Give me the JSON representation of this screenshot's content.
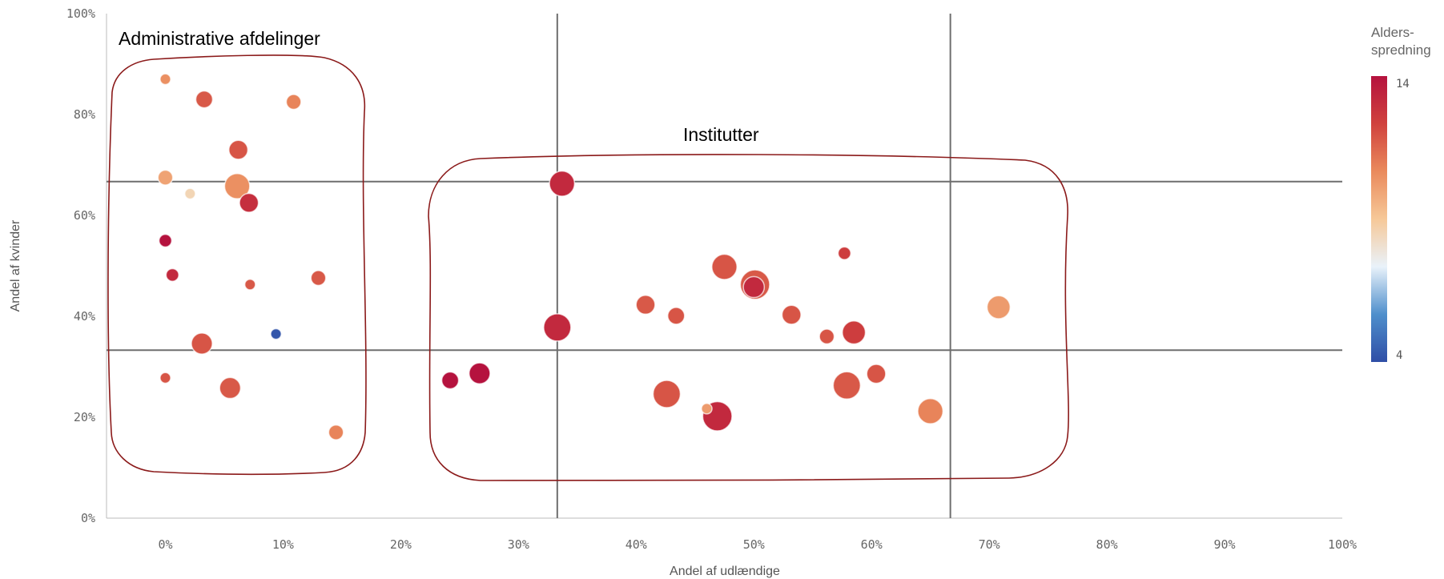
{
  "chart_data": {
    "type": "scatter",
    "xlabel": "Andel af udlændige",
    "ylabel": "Andel af kvinder",
    "xlim": [
      -5,
      100
    ],
    "ylim": [
      0,
      100
    ],
    "x_ticks": [
      "0%",
      "10%",
      "20%",
      "30%",
      "40%",
      "50%",
      "60%",
      "70%",
      "80%",
      "90%",
      "100%"
    ],
    "y_ticks": [
      "0%",
      "20%",
      "40%",
      "60%",
      "80%",
      "100%"
    ],
    "reference_lines": {
      "x": [
        33.3,
        66.7
      ],
      "y": [
        33.3,
        66.7
      ]
    },
    "grid": false,
    "annotations": [
      {
        "text": "Administrative afdelinger",
        "group": "admin"
      },
      {
        "text": "Institutter",
        "group": "institutter"
      }
    ],
    "color_legend": {
      "title_lines": [
        "Alders-",
        "spredning"
      ],
      "min_label": "4",
      "max_label": "14",
      "min": 4,
      "max": 14,
      "placement": "right",
      "colors": [
        "#2f4ea6",
        "#4f8fcc",
        "#e9f2fa",
        "#f6c898",
        "#ea8a5c",
        "#d0423e",
        "#b5123e"
      ]
    },
    "points": [
      {
        "x": 0.0,
        "y": 87.0,
        "size": 2,
        "color_value": 10.5
      },
      {
        "x": 3.3,
        "y": 83.0,
        "size": 5,
        "color_value": 11.8
      },
      {
        "x": 10.9,
        "y": 82.5,
        "size": 4,
        "color_value": 10.8
      },
      {
        "x": 6.2,
        "y": 73.0,
        "size": 6,
        "color_value": 11.9
      },
      {
        "x": 0.0,
        "y": 67.5,
        "size": 4,
        "color_value": 10.0
      },
      {
        "x": 6.1,
        "y": 65.8,
        "size": 9,
        "color_value": 10.5
      },
      {
        "x": 2.1,
        "y": 64.3,
        "size": 2,
        "color_value": 8.5
      },
      {
        "x": 7.1,
        "y": 62.5,
        "size": 6,
        "color_value": 13.0
      },
      {
        "x": 0.0,
        "y": 55.0,
        "size": 3,
        "color_value": 14.0
      },
      {
        "x": 0.6,
        "y": 48.2,
        "size": 3,
        "color_value": 13.2
      },
      {
        "x": 7.2,
        "y": 46.3,
        "size": 2,
        "color_value": 11.8
      },
      {
        "x": 13.0,
        "y": 47.6,
        "size": 4,
        "color_value": 11.8
      },
      {
        "x": 9.4,
        "y": 36.5,
        "size": 2,
        "color_value": 4.2
      },
      {
        "x": 3.1,
        "y": 34.6,
        "size": 7,
        "color_value": 11.9
      },
      {
        "x": 0.0,
        "y": 27.8,
        "size": 2,
        "color_value": 11.9
      },
      {
        "x": 5.5,
        "y": 25.8,
        "size": 7,
        "color_value": 11.8
      },
      {
        "x": 14.5,
        "y": 17.0,
        "size": 4,
        "color_value": 10.8
      },
      {
        "x": 33.7,
        "y": 66.3,
        "size": 9,
        "color_value": 13.2
      },
      {
        "x": 57.7,
        "y": 52.5,
        "size": 3,
        "color_value": 12.5
      },
      {
        "x": 47.5,
        "y": 49.8,
        "size": 9,
        "color_value": 11.9
      },
      {
        "x": 50.1,
        "y": 46.3,
        "size": 11,
        "color_value": 11.8
      },
      {
        "x": 50.0,
        "y": 45.8,
        "size": 7,
        "color_value": 13.2
      },
      {
        "x": 40.8,
        "y": 42.3,
        "size": 6,
        "color_value": 11.8
      },
      {
        "x": 43.4,
        "y": 40.1,
        "size": 5,
        "color_value": 11.9
      },
      {
        "x": 53.2,
        "y": 40.3,
        "size": 6,
        "color_value": 11.9
      },
      {
        "x": 70.8,
        "y": 41.8,
        "size": 8,
        "color_value": 10.2
      },
      {
        "x": 33.3,
        "y": 37.8,
        "size": 10,
        "color_value": 13.2
      },
      {
        "x": 56.2,
        "y": 36.0,
        "size": 4,
        "color_value": 11.9
      },
      {
        "x": 58.5,
        "y": 36.8,
        "size": 8,
        "color_value": 12.5
      },
      {
        "x": 24.2,
        "y": 27.3,
        "size": 5,
        "color_value": 14.0
      },
      {
        "x": 26.7,
        "y": 28.7,
        "size": 7,
        "color_value": 14.0
      },
      {
        "x": 60.4,
        "y": 28.6,
        "size": 6,
        "color_value": 11.9
      },
      {
        "x": 57.9,
        "y": 26.3,
        "size": 10,
        "color_value": 11.8
      },
      {
        "x": 42.6,
        "y": 24.6,
        "size": 10,
        "color_value": 11.9
      },
      {
        "x": 46.0,
        "y": 21.7,
        "size": 2,
        "color_value": 10.2
      },
      {
        "x": 46.9,
        "y": 20.2,
        "size": 11,
        "color_value": 13.2
      },
      {
        "x": 65.0,
        "y": 21.2,
        "size": 9,
        "color_value": 10.8
      }
    ]
  }
}
